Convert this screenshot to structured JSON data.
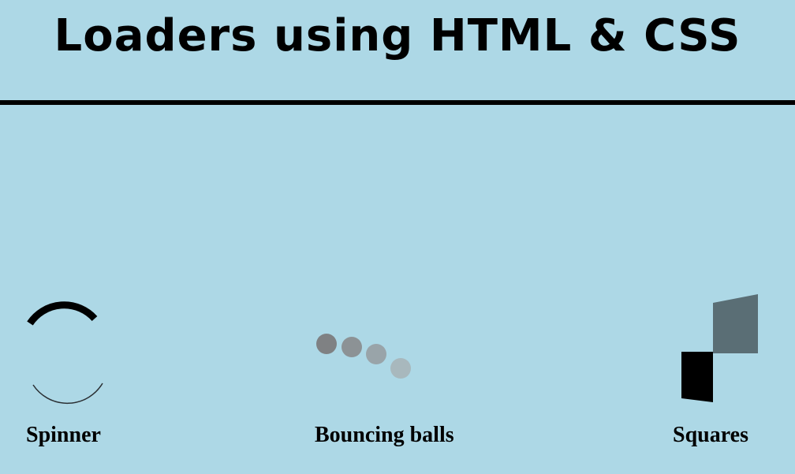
{
  "header": {
    "title": "Loaders using HTML & CSS"
  },
  "loaders": [
    {
      "label": "Spinner",
      "icon": "spinner-icon"
    },
    {
      "label": "Bouncing balls",
      "icon": "bouncing-balls-icon"
    },
    {
      "label": "Squares",
      "icon": "squares-icon"
    }
  ],
  "colors": {
    "background": "#add8e6",
    "text": "#000000",
    "square_dark": "#000000",
    "square_slate": "#5a6e75",
    "ball_1": "#7f8183",
    "ball_2": "#8c9295",
    "ball_3": "#99a4a9",
    "ball_4": "#a8b8bd"
  }
}
